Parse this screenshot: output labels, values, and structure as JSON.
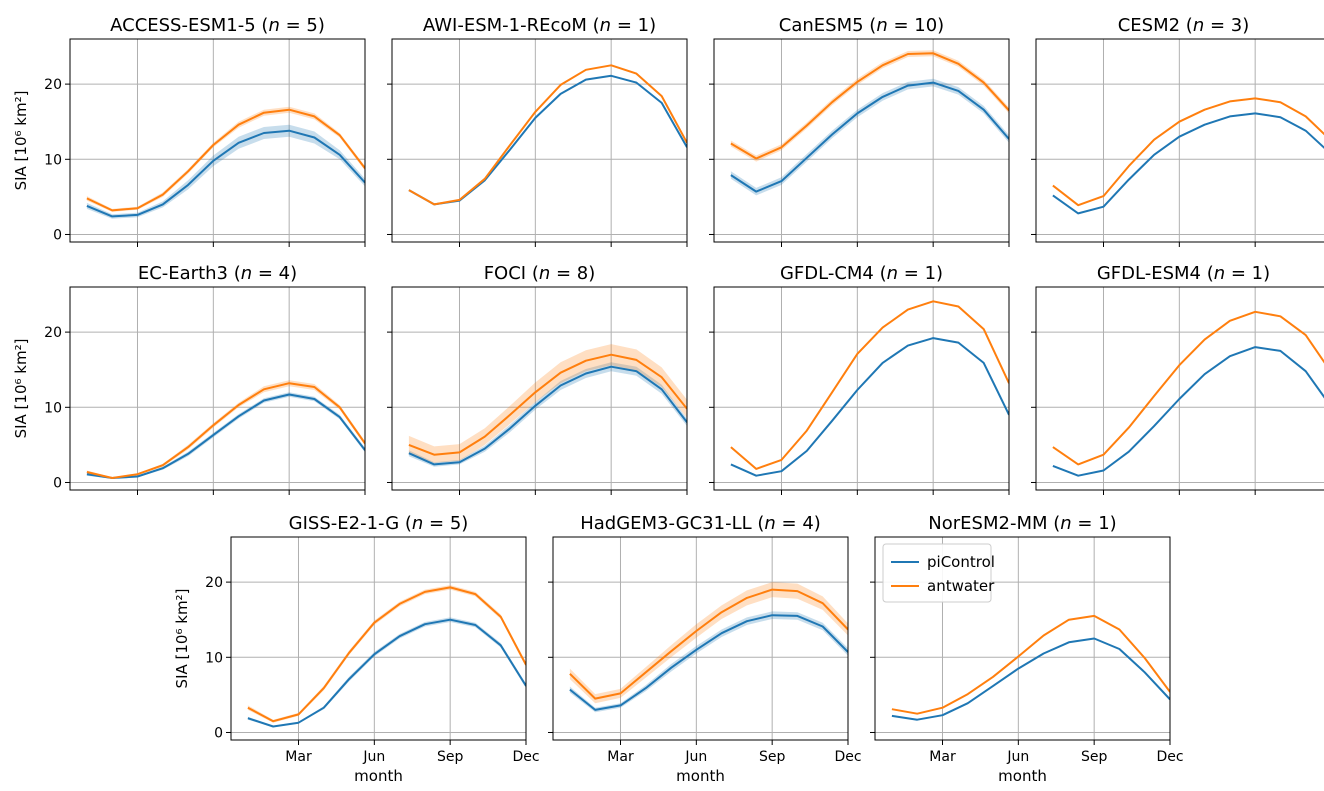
{
  "colors": {
    "piControl": "#1f77b4",
    "antwater": "#ff7f0e",
    "grid": "#b0b0b0",
    "axis": "#000000"
  },
  "legend": {
    "items": [
      "piControl",
      "antwater"
    ],
    "placement": "upper-left of NorESM2-MM panel"
  },
  "chart_data": {
    "type": "line",
    "ylabel": "SIA [10⁶ km²]",
    "xlabel": "month",
    "x": [
      1,
      2,
      3,
      4,
      5,
      6,
      7,
      8,
      9,
      10,
      11,
      12
    ],
    "xlim": [
      0.33,
      12.0
    ],
    "ylim": [
      -1,
      26
    ],
    "xticks": [
      3,
      6,
      9,
      12
    ],
    "xtick_labels": [
      "Mar",
      "Jun",
      "Sep",
      "Dec"
    ],
    "yticks": [
      0,
      10,
      20
    ],
    "ytick_labels": [
      "0",
      "10",
      "20"
    ],
    "grid": true,
    "panels": [
      {
        "title": "ACCESS-ESM1-5 (",
        "n": "n = 5",
        "series": [
          {
            "name": "piControl",
            "values": [
              3.8,
              2.4,
              2.6,
              4.0,
              6.6,
              9.8,
              12.2,
              13.5,
              13.8,
              12.9,
              10.6,
              6.9
            ],
            "band": [
              0.4,
              0.3,
              0.3,
              0.4,
              0.6,
              0.7,
              0.8,
              0.8,
              0.8,
              0.8,
              0.6,
              0.5
            ]
          },
          {
            "name": "antwater",
            "values": [
              4.8,
              3.2,
              3.5,
              5.3,
              8.4,
              11.9,
              14.6,
              16.2,
              16.6,
              15.7,
              13.2,
              8.8
            ],
            "band": [
              0.3,
              0.2,
              0.2,
              0.3,
              0.3,
              0.3,
              0.4,
              0.4,
              0.4,
              0.4,
              0.3,
              0.3
            ]
          }
        ]
      },
      {
        "title": "AWI-ESM-1-REcoM (",
        "n": "n = 1",
        "series": [
          {
            "name": "piControl",
            "values": [
              5.9,
              4.0,
              4.5,
              7.2,
              11.3,
              15.5,
              18.7,
              20.6,
              21.1,
              20.2,
              17.5,
              11.6
            ],
            "band": [
              0,
              0,
              0,
              0,
              0,
              0,
              0,
              0,
              0,
              0,
              0,
              0
            ]
          },
          {
            "name": "antwater",
            "values": [
              5.9,
              4.0,
              4.6,
              7.4,
              11.9,
              16.3,
              19.9,
              21.9,
              22.5,
              21.4,
              18.4,
              12.2
            ],
            "band": [
              0,
              0,
              0,
              0,
              0,
              0,
              0,
              0,
              0,
              0,
              0,
              0
            ]
          }
        ]
      },
      {
        "title": "CanESM5 (",
        "n": "n = 10",
        "series": [
          {
            "name": "piControl",
            "values": [
              7.9,
              5.7,
              7.1,
              10.2,
              13.3,
              16.1,
              18.3,
              19.8,
              20.2,
              19.1,
              16.6,
              12.7
            ],
            "band": [
              0.5,
              0.5,
              0.5,
              0.5,
              0.5,
              0.5,
              0.5,
              0.5,
              0.5,
              0.5,
              0.5,
              0.5
            ]
          },
          {
            "name": "antwater",
            "values": [
              12.1,
              10.1,
              11.6,
              14.5,
              17.6,
              20.3,
              22.5,
              24.0,
              24.1,
              22.7,
              20.2,
              16.5
            ],
            "band": [
              0.4,
              0.4,
              0.4,
              0.4,
              0.4,
              0.4,
              0.4,
              0.4,
              0.4,
              0.4,
              0.4,
              0.4
            ]
          }
        ]
      },
      {
        "title": "CESM2 (",
        "n": "n = 3",
        "series": [
          {
            "name": "piControl",
            "values": [
              5.2,
              2.8,
              3.7,
              7.3,
              10.6,
              13.0,
              14.6,
              15.7,
              16.1,
              15.6,
              13.8,
              10.7
            ],
            "band": [
              0,
              0,
              0,
              0,
              0,
              0,
              0,
              0,
              0,
              0,
              0,
              0
            ]
          },
          {
            "name": "antwater",
            "values": [
              6.5,
              3.9,
              5.1,
              9.1,
              12.6,
              15.0,
              16.6,
              17.7,
              18.1,
              17.6,
              15.7,
              12.5
            ],
            "band": [
              0,
              0,
              0,
              0,
              0,
              0,
              0,
              0,
              0,
              0,
              0,
              0
            ]
          }
        ]
      },
      {
        "title": "EC-Earth3 (",
        "n": "n = 4",
        "series": [
          {
            "name": "piControl",
            "values": [
              1.1,
              0.6,
              0.8,
              1.9,
              3.8,
              6.3,
              8.8,
              10.9,
              11.7,
              11.1,
              8.7,
              4.3
            ],
            "band": [
              0.2,
              0.1,
              0.1,
              0.2,
              0.3,
              0.3,
              0.3,
              0.3,
              0.3,
              0.3,
              0.3,
              0.3
            ]
          },
          {
            "name": "antwater",
            "values": [
              1.4,
              0.6,
              1.1,
              2.3,
              4.7,
              7.6,
              10.3,
              12.4,
              13.2,
              12.7,
              10.0,
              5.2
            ],
            "band": [
              0.2,
              0.1,
              0.1,
              0.2,
              0.3,
              0.3,
              0.3,
              0.4,
              0.4,
              0.4,
              0.3,
              0.3
            ]
          }
        ]
      },
      {
        "title": "FOCI (",
        "n": "n = 8",
        "series": [
          {
            "name": "piControl",
            "values": [
              3.9,
              2.4,
              2.7,
              4.5,
              7.2,
              10.2,
              12.9,
              14.5,
              15.4,
              14.8,
              12.4,
              8.0
            ],
            "band": [
              0.4,
              0.3,
              0.3,
              0.4,
              0.5,
              0.5,
              0.6,
              0.6,
              0.6,
              0.6,
              0.6,
              0.5
            ]
          },
          {
            "name": "antwater",
            "values": [
              5.0,
              3.7,
              4.0,
              6.1,
              9.0,
              12.0,
              14.6,
              16.2,
              17.0,
              16.3,
              14.0,
              9.8
            ],
            "band": [
              1.2,
              1.1,
              1.1,
              1.1,
              1.2,
              1.3,
              1.4,
              1.4,
              1.4,
              1.4,
              1.3,
              1.2
            ]
          }
        ]
      },
      {
        "title": "GFDL-CM4 (",
        "n": "n = 1",
        "series": [
          {
            "name": "piControl",
            "values": [
              2.4,
              0.9,
              1.5,
              4.2,
              8.2,
              12.3,
              15.9,
              18.2,
              19.2,
              18.6,
              15.9,
              9.0
            ],
            "band": [
              0,
              0,
              0,
              0,
              0,
              0,
              0,
              0,
              0,
              0,
              0,
              0
            ]
          },
          {
            "name": "antwater",
            "values": [
              4.7,
              1.8,
              3.0,
              6.9,
              12.0,
              17.1,
              20.6,
              23.0,
              24.1,
              23.4,
              20.4,
              13.2
            ],
            "band": [
              0,
              0,
              0,
              0,
              0,
              0,
              0,
              0,
              0,
              0,
              0,
              0
            ]
          }
        ]
      },
      {
        "title": "GFDL-ESM4 (",
        "n": "n = 1",
        "series": [
          {
            "name": "piControl",
            "values": [
              2.2,
              0.9,
              1.6,
              4.1,
              7.5,
              11.1,
              14.4,
              16.8,
              18.0,
              17.5,
              14.8,
              10.1
            ],
            "band": [
              0,
              0,
              0,
              0,
              0,
              0,
              0,
              0,
              0,
              0,
              0,
              0
            ]
          },
          {
            "name": "antwater",
            "values": [
              4.7,
              2.4,
              3.7,
              7.3,
              11.5,
              15.6,
              19.0,
              21.5,
              22.7,
              22.1,
              19.6,
              14.7
            ],
            "band": [
              0,
              0,
              0,
              0,
              0,
              0,
              0,
              0,
              0,
              0,
              0,
              0
            ]
          }
        ]
      },
      {
        "title": "GISS-E2-1-G (",
        "n": "n = 5",
        "series": [
          {
            "name": "piControl",
            "values": [
              1.9,
              0.8,
              1.3,
              3.3,
              7.1,
              10.4,
              12.8,
              14.4,
              15.0,
              14.3,
              11.6,
              6.2
            ],
            "band": [
              0.2,
              0.1,
              0.1,
              0.2,
              0.3,
              0.3,
              0.3,
              0.3,
              0.3,
              0.3,
              0.3,
              0.3
            ]
          },
          {
            "name": "antwater",
            "values": [
              3.3,
              1.5,
              2.4,
              5.9,
              10.6,
              14.6,
              17.1,
              18.7,
              19.3,
              18.4,
              15.4,
              9.0
            ],
            "band": [
              0.3,
              0.2,
              0.2,
              0.3,
              0.3,
              0.3,
              0.3,
              0.3,
              0.3,
              0.3,
              0.3,
              0.3
            ]
          }
        ]
      },
      {
        "title": "HadGEM3-GC31-LL (",
        "n": "n = 4",
        "series": [
          {
            "name": "piControl",
            "values": [
              5.7,
              3.0,
              3.6,
              5.9,
              8.6,
              11.0,
              13.2,
              14.8,
              15.6,
              15.5,
              14.1,
              10.7
            ],
            "band": [
              0.4,
              0.3,
              0.3,
              0.4,
              0.5,
              0.5,
              0.5,
              0.5,
              0.5,
              0.5,
              0.5,
              0.5
            ]
          },
          {
            "name": "antwater",
            "values": [
              7.8,
              4.5,
              5.2,
              8.0,
              10.8,
              13.5,
              16.0,
              17.9,
              19.0,
              18.8,
              17.2,
              13.7
            ],
            "band": [
              0.7,
              0.6,
              0.6,
              0.7,
              0.8,
              0.9,
              0.9,
              1.0,
              1.0,
              1.0,
              0.9,
              0.8
            ]
          }
        ]
      },
      {
        "title": "NorESM2-MM (",
        "n": "n = 1",
        "series": [
          {
            "name": "piControl",
            "values": [
              2.2,
              1.7,
              2.3,
              3.9,
              6.2,
              8.5,
              10.5,
              12.0,
              12.5,
              11.1,
              8.0,
              4.4
            ],
            "band": [
              0,
              0,
              0,
              0,
              0,
              0,
              0,
              0,
              0,
              0,
              0,
              0
            ]
          },
          {
            "name": "antwater",
            "values": [
              3.1,
              2.5,
              3.3,
              5.1,
              7.4,
              10.1,
              12.9,
              15.0,
              15.5,
              13.7,
              9.9,
              5.4
            ],
            "band": [
              0,
              0,
              0,
              0,
              0,
              0,
              0,
              0,
              0,
              0,
              0,
              0
            ]
          }
        ]
      }
    ]
  }
}
